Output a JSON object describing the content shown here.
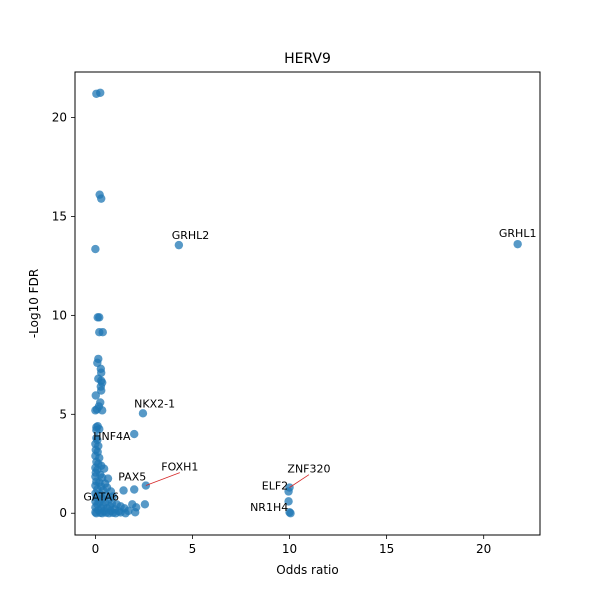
{
  "chart_data": {
    "type": "scatter",
    "title": "HERV9",
    "xlabel": "Odds ratio",
    "ylabel": "-Log10 FDR",
    "xlim": [
      -1.05,
      22.9
    ],
    "ylim": [
      -1.1,
      22.3
    ],
    "xticks": [
      0,
      5,
      10,
      15,
      20
    ],
    "yticks": [
      0,
      5,
      10,
      15,
      20
    ],
    "grid": false,
    "legend": "none",
    "point_color": "#1f77b4",
    "point_alpha": 0.75,
    "annotation_line_color": "#d62728",
    "points": [
      {
        "x": 0.05,
        "y": 21.2
      },
      {
        "x": 0.25,
        "y": 21.25
      },
      {
        "x": 0.22,
        "y": 16.1
      },
      {
        "x": 0.3,
        "y": 15.9
      },
      {
        "x": 0.0,
        "y": 13.35
      },
      {
        "x": 4.3,
        "y": 13.55
      },
      {
        "x": 21.75,
        "y": 13.6
      },
      {
        "x": 0.12,
        "y": 9.9
      },
      {
        "x": 0.2,
        "y": 9.9
      },
      {
        "x": 0.2,
        "y": 9.15
      },
      {
        "x": 0.38,
        "y": 9.15
      },
      {
        "x": 0.15,
        "y": 7.8
      },
      {
        "x": 0.1,
        "y": 7.6
      },
      {
        "x": 0.28,
        "y": 7.3
      },
      {
        "x": 0.3,
        "y": 7.1
      },
      {
        "x": 0.15,
        "y": 6.8
      },
      {
        "x": 0.3,
        "y": 6.7
      },
      {
        "x": 0.35,
        "y": 6.6
      },
      {
        "x": 0.28,
        "y": 6.4
      },
      {
        "x": 0.3,
        "y": 6.2
      },
      {
        "x": 0.02,
        "y": 5.95
      },
      {
        "x": 0.25,
        "y": 5.6
      },
      {
        "x": 0.18,
        "y": 5.4
      },
      {
        "x": 0.0,
        "y": 5.2
      },
      {
        "x": 0.08,
        "y": 5.25
      },
      {
        "x": 0.35,
        "y": 5.2
      },
      {
        "x": 2.45,
        "y": 5.05
      },
      {
        "x": 0.05,
        "y": 4.35
      },
      {
        "x": 0.12,
        "y": 4.4
      },
      {
        "x": 0.05,
        "y": 4.2
      },
      {
        "x": 0.2,
        "y": 4.25
      },
      {
        "x": 2.0,
        "y": 4.0
      },
      {
        "x": 0.05,
        "y": 3.8
      },
      {
        "x": 0.1,
        "y": 3.7
      },
      {
        "x": 0.0,
        "y": 3.5
      },
      {
        "x": 0.15,
        "y": 3.4
      },
      {
        "x": 0.02,
        "y": 3.2
      },
      {
        "x": 0.12,
        "y": 3.1
      },
      {
        "x": 0.0,
        "y": 2.9
      },
      {
        "x": 0.2,
        "y": 2.8
      },
      {
        "x": 0.05,
        "y": 2.6
      },
      {
        "x": 0.15,
        "y": 2.5
      },
      {
        "x": 0.3,
        "y": 2.4
      },
      {
        "x": 0.0,
        "y": 2.3
      },
      {
        "x": 0.1,
        "y": 2.2
      },
      {
        "x": 0.45,
        "y": 2.25
      },
      {
        "x": 0.02,
        "y": 2.05
      },
      {
        "x": 0.25,
        "y": 1.95
      },
      {
        "x": 0.0,
        "y": 1.85
      },
      {
        "x": 0.35,
        "y": 1.8
      },
      {
        "x": 0.65,
        "y": 1.75
      },
      {
        "x": 0.05,
        "y": 1.6
      },
      {
        "x": 0.2,
        "y": 1.55
      },
      {
        "x": 0.5,
        "y": 1.5
      },
      {
        "x": 0.0,
        "y": 1.4
      },
      {
        "x": 0.3,
        "y": 1.35
      },
      {
        "x": 0.6,
        "y": 1.3
      },
      {
        "x": 2.6,
        "y": 1.4
      },
      {
        "x": 0.1,
        "y": 1.2
      },
      {
        "x": 0.4,
        "y": 1.15
      },
      {
        "x": 0.8,
        "y": 1.1
      },
      {
        "x": 1.45,
        "y": 1.15
      },
      {
        "x": 2.0,
        "y": 1.2
      },
      {
        "x": 0.0,
        "y": 1.0
      },
      {
        "x": 0.25,
        "y": 0.95
      },
      {
        "x": 0.55,
        "y": 0.9
      },
      {
        "x": 0.9,
        "y": 0.85
      },
      {
        "x": 0.05,
        "y": 0.8
      },
      {
        "x": 0.35,
        "y": 0.75
      },
      {
        "x": 0.7,
        "y": 0.7
      },
      {
        "x": 0.0,
        "y": 0.6
      },
      {
        "x": 0.2,
        "y": 0.55
      },
      {
        "x": 0.5,
        "y": 0.55
      },
      {
        "x": 0.85,
        "y": 0.5
      },
      {
        "x": 1.1,
        "y": 0.45
      },
      {
        "x": 0.1,
        "y": 0.45
      },
      {
        "x": 0.4,
        "y": 0.4
      },
      {
        "x": 0.75,
        "y": 0.35
      },
      {
        "x": 1.3,
        "y": 0.35
      },
      {
        "x": 1.9,
        "y": 0.45
      },
      {
        "x": 2.55,
        "y": 0.45
      },
      {
        "x": 0.0,
        "y": 0.3
      },
      {
        "x": 0.3,
        "y": 0.25
      },
      {
        "x": 0.6,
        "y": 0.25
      },
      {
        "x": 1.0,
        "y": 0.2
      },
      {
        "x": 1.5,
        "y": 0.25
      },
      {
        "x": 2.1,
        "y": 0.3
      },
      {
        "x": 0.15,
        "y": 0.15
      },
      {
        "x": 0.45,
        "y": 0.1
      },
      {
        "x": 0.8,
        "y": 0.12
      },
      {
        "x": 1.2,
        "y": 0.1
      },
      {
        "x": 1.7,
        "y": 0.12
      },
      {
        "x": 0.0,
        "y": 0.05
      },
      {
        "x": 0.25,
        "y": 0.02
      },
      {
        "x": 0.55,
        "y": 0.03
      },
      {
        "x": 0.9,
        "y": 0.02
      },
      {
        "x": 1.3,
        "y": 0.04
      },
      {
        "x": 2.05,
        "y": 0.05
      },
      {
        "x": 0.05,
        "y": 0.0
      },
      {
        "x": 0.35,
        "y": 0.0
      },
      {
        "x": 0.7,
        "y": 0.0
      },
      {
        "x": 1.05,
        "y": 0.0
      },
      {
        "x": 1.55,
        "y": 0.0
      },
      {
        "x": 10.0,
        "y": 1.3
      },
      {
        "x": 9.95,
        "y": 1.1
      },
      {
        "x": 9.95,
        "y": 0.6
      },
      {
        "x": 10.0,
        "y": 0.05
      },
      {
        "x": 10.05,
        "y": 0.0
      }
    ],
    "annotations": [
      {
        "label": "GRHL1",
        "point": [
          21.75,
          13.6
        ],
        "text_pos": [
          21.75,
          13.85
        ],
        "anchor": "middle",
        "leader": false
      },
      {
        "label": "GRHL2",
        "point": [
          4.3,
          13.55
        ],
        "text_pos": [
          4.9,
          13.75
        ],
        "anchor": "middle",
        "leader": false
      },
      {
        "label": "NKX2-1",
        "point": [
          2.45,
          5.05
        ],
        "text_pos": [
          3.05,
          5.25
        ],
        "anchor": "middle",
        "leader": false
      },
      {
        "label": "HNF4A",
        "point": [
          0.1,
          3.7
        ],
        "text_pos": [
          0.85,
          3.6
        ],
        "anchor": "middle",
        "leader": false
      },
      {
        "label": "FOXH1",
        "point": [
          2.6,
          1.4
        ],
        "text_pos": [
          4.35,
          2.05
        ],
        "anchor": "middle",
        "leader": true
      },
      {
        "label": "PAX5",
        "point": [
          1.45,
          1.15
        ],
        "text_pos": [
          1.9,
          1.55
        ],
        "anchor": "middle",
        "leader": false
      },
      {
        "label": "GATA6",
        "point": [
          0.1,
          0.45
        ],
        "text_pos": [
          0.3,
          0.55
        ],
        "anchor": "middle",
        "leader": false
      },
      {
        "label": "ZNF320",
        "point": [
          10.0,
          1.3
        ],
        "text_pos": [
          11.0,
          1.95
        ],
        "anchor": "middle",
        "leader": true
      },
      {
        "label": "ELF2",
        "point": [
          9.95,
          1.1
        ],
        "text_pos": [
          9.25,
          1.1
        ],
        "anchor": "middle",
        "leader": false
      },
      {
        "label": "NR1H4",
        "point": [
          10.0,
          0.05
        ],
        "text_pos": [
          8.95,
          0.0
        ],
        "anchor": "middle",
        "leader": false
      }
    ]
  }
}
